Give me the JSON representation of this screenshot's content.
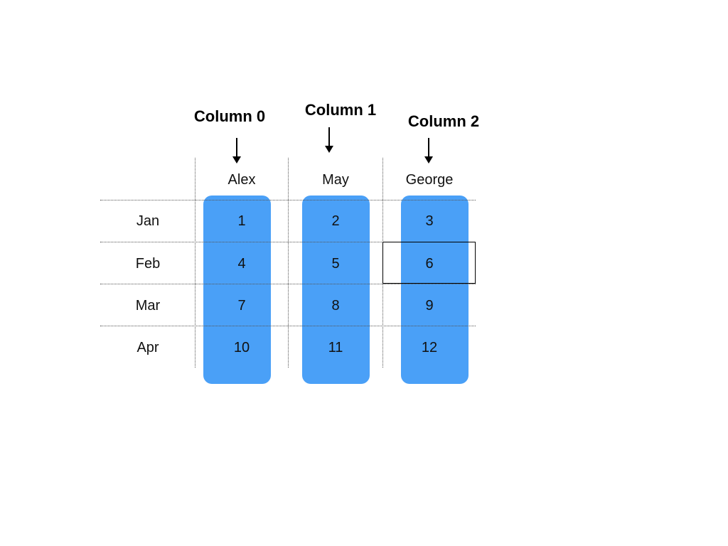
{
  "columns": [
    {
      "title": "Column 0",
      "name": "Alex"
    },
    {
      "title": "Column 1",
      "name": "May"
    },
    {
      "title": "Column 2",
      "name": "George"
    }
  ],
  "rows": [
    {
      "label": "Jan",
      "values": [
        "1",
        "2",
        "3"
      ]
    },
    {
      "label": "Feb",
      "values": [
        "4",
        "5",
        "6"
      ]
    },
    {
      "label": "Mar",
      "values": [
        "7",
        "8",
        "9"
      ]
    },
    {
      "label": "Apr",
      "values": [
        "10",
        "11",
        "12"
      ]
    }
  ],
  "highlighted_cell": {
    "row": "Feb",
    "column": "George",
    "value": "6"
  },
  "colors": {
    "column_band": "#4aa0f7",
    "highlight_border": "#000000",
    "gridline": "#555555"
  }
}
